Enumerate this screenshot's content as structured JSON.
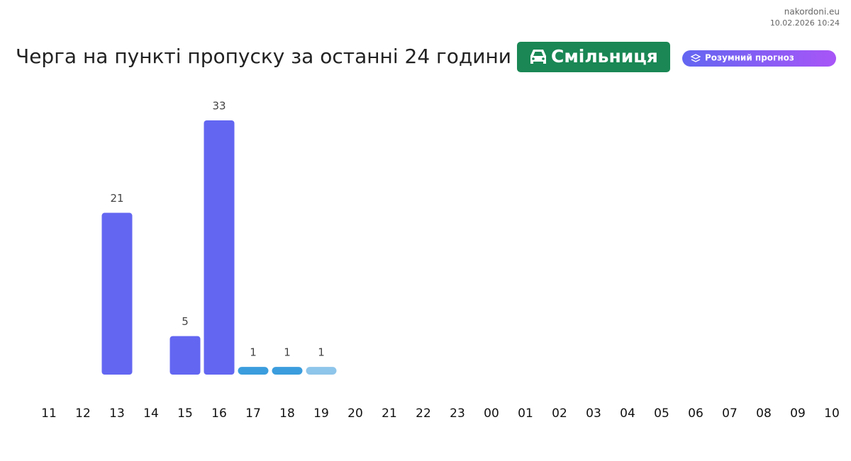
{
  "site": "nakordoni.eu",
  "timestamp": "10.02.2026 10:24",
  "checkpoint": "Смільниця",
  "forecast_badge": "Розумний прогноз",
  "chart_data": {
    "type": "bar",
    "title": "Черга на пункті пропуску за останні 24 години",
    "categories": [
      "11",
      "12",
      "13",
      "14",
      "15",
      "16",
      "17",
      "18",
      "19",
      "20",
      "21",
      "22",
      "23",
      "00",
      "01",
      "02",
      "03",
      "04",
      "05",
      "06",
      "07",
      "08",
      "09",
      "10"
    ],
    "values": [
      null,
      null,
      21,
      null,
      5,
      33,
      1,
      1,
      1,
      null,
      null,
      null,
      null,
      null,
      null,
      null,
      null,
      null,
      null,
      null,
      null,
      null,
      null,
      null
    ],
    "colors": [
      null,
      null,
      "#6366f1",
      null,
      "#6366f1",
      "#6366f1",
      "#3b9ddd",
      "#3b9ddd",
      "#8ec5ea",
      null,
      null,
      null,
      null,
      null,
      null,
      null,
      null,
      null,
      null,
      null,
      null,
      null,
      null,
      null
    ]
  }
}
